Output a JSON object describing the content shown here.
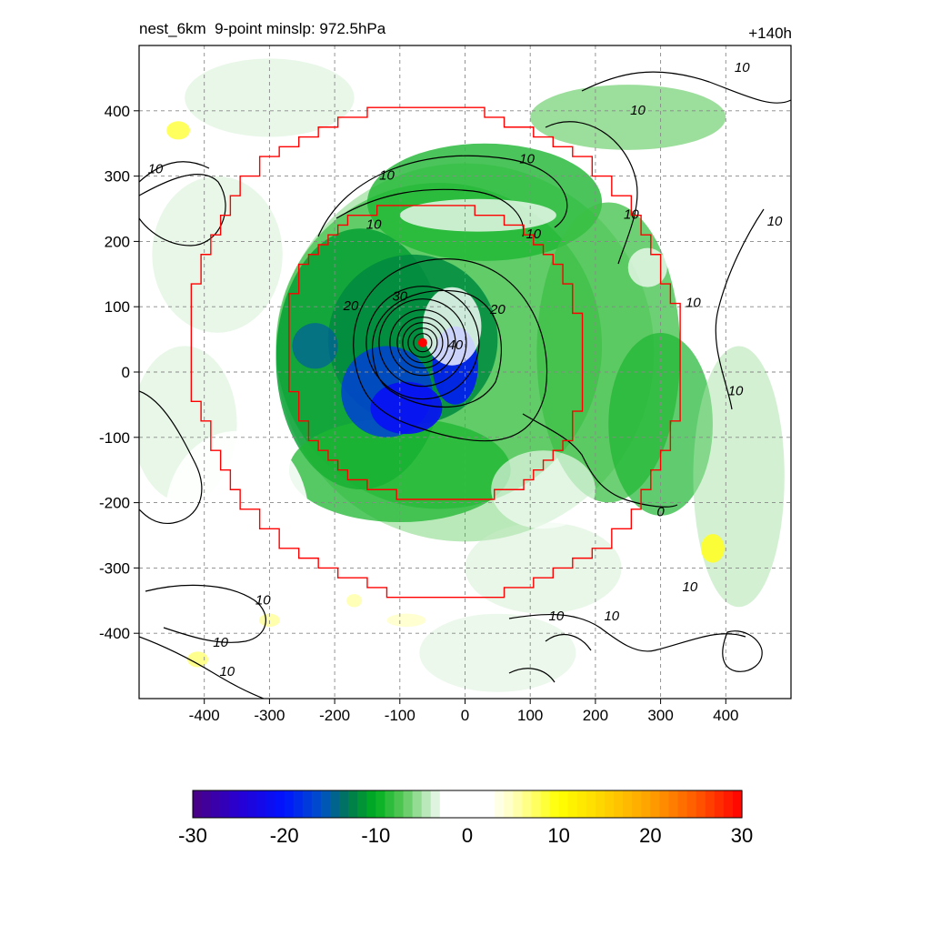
{
  "chart_data": {
    "type": "contour-map",
    "title_left": "nest_6km  9-point minslp: 972.5hPa",
    "title_right": "+140h",
    "xlabel": "",
    "ylabel": "",
    "xlim": [
      -500,
      500
    ],
    "ylim": [
      -500,
      500
    ],
    "x_ticks": [
      -400,
      -300,
      -200,
      -100,
      0,
      100,
      200,
      300,
      400
    ],
    "y_ticks": [
      400,
      300,
      200,
      100,
      0,
      -100,
      -200,
      -300,
      -400
    ],
    "grid": true,
    "storm_center": [
      -65,
      45
    ],
    "rings": [
      {
        "name": "outer",
        "radius": 380
      },
      {
        "name": "inner",
        "radius": 230
      }
    ],
    "contour_labels": [
      {
        "text": "10",
        "x": -475,
        "y": 310
      },
      {
        "text": "10",
        "x": -140,
        "y": 225
      },
      {
        "text": "10",
        "x": -120,
        "y": 300
      },
      {
        "text": "10",
        "x": 95,
        "y": 325
      },
      {
        "text": "10",
        "x": 105,
        "y": 210
      },
      {
        "text": "10",
        "x": 255,
        "y": 240
      },
      {
        "text": "10",
        "x": 265,
        "y": 400
      },
      {
        "text": "10",
        "x": 425,
        "y": 465
      },
      {
        "text": "10",
        "x": 475,
        "y": 230
      },
      {
        "text": "10",
        "x": 350,
        "y": 105
      },
      {
        "text": "10",
        "x": 415,
        "y": -30
      },
      {
        "text": "10",
        "x": 345,
        "y": -330
      },
      {
        "text": "10",
        "x": 225,
        "y": -375
      },
      {
        "text": "10",
        "x": 140,
        "y": -375
      },
      {
        "text": "10",
        "x": -310,
        "y": -350
      },
      {
        "text": "10",
        "x": -375,
        "y": -415
      },
      {
        "text": "10",
        "x": -365,
        "y": -460
      },
      {
        "text": "20",
        "x": -175,
        "y": 100
      },
      {
        "text": "20",
        "x": 50,
        "y": 95
      },
      {
        "text": "30",
        "x": -100,
        "y": 115
      },
      {
        "text": "40",
        "x": -15,
        "y": 40
      },
      {
        "text": "0",
        "x": 300,
        "y": -215
      }
    ],
    "colorbar": {
      "ticks": [
        -30,
        -20,
        -10,
        0,
        10,
        20,
        30
      ],
      "min": -30,
      "max": 30,
      "levels": 60
    },
    "colors": {
      "ring": "#ff0000",
      "contour": "#000000",
      "grid": "#888888"
    }
  }
}
